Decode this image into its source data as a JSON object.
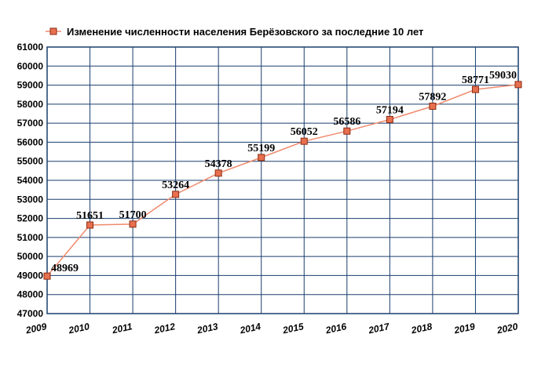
{
  "chart_data": {
    "type": "line",
    "title": "Изменение численности населения Берёзовского за последние 10 лет",
    "legend_position": "top-left",
    "grid": true,
    "x": [
      "2009",
      "2010",
      "2011",
      "2012",
      "2013",
      "2014",
      "2015",
      "2016",
      "2017",
      "2018",
      "2019",
      "2020"
    ],
    "series": [
      {
        "name": "Изменение численности населения Берёзовского за последние 10 лет",
        "values": [
          48969,
          51651,
          51700,
          53264,
          54378,
          55199,
          56052,
          56586,
          57194,
          57892,
          58771,
          59030
        ]
      }
    ],
    "ylim": [
      47000,
      61000
    ],
    "ystep": 1000,
    "yticks": [
      "47000",
      "48000",
      "49000",
      "50000",
      "51000",
      "52000",
      "53000",
      "54000",
      "55000",
      "56000",
      "57000",
      "58000",
      "59000",
      "60000",
      "61000"
    ],
    "xlabel": "",
    "ylabel": "",
    "colors": {
      "line": "#f08a6c",
      "marker_fill": "#e8704f",
      "marker_stroke": "#8a2a10",
      "grid": "#1a3e6e",
      "frame": "#1a3e6e"
    }
  }
}
